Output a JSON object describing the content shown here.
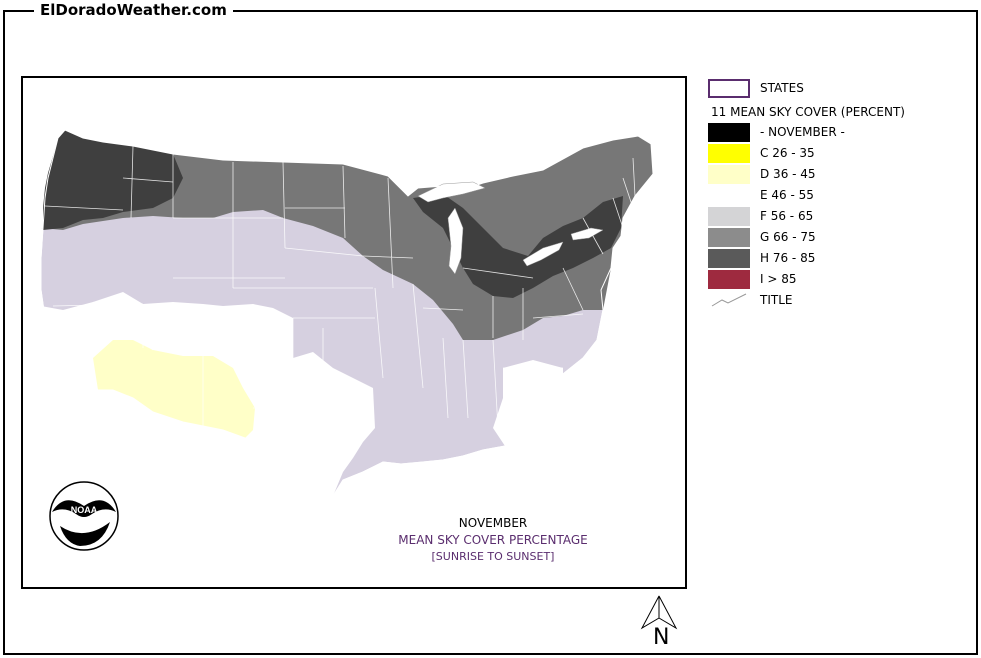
{
  "site": {
    "title": "ElDoradoWeather.com"
  },
  "legend": {
    "states_label": "STATES",
    "heading": "11 MEAN SKY COVER (PERCENT)",
    "items": [
      {
        "label": "- NOVEMBER -",
        "color": "#000000"
      },
      {
        "label": "C 26 - 35",
        "color": "#ffff00"
      },
      {
        "label": "D 36 - 45",
        "color": "#ffffc8"
      },
      {
        "label": "E 46 - 55",
        "color": "#ffffff"
      },
      {
        "label": "F 56 - 65",
        "color": "#d4d4d6"
      },
      {
        "label": "G 66 - 75",
        "color": "#8c8c8c"
      },
      {
        "label": "H 76 - 85",
        "color": "#5a5a5a"
      },
      {
        "label": "I > 85",
        "color": "#9e2a3f"
      }
    ],
    "title_label": "TITLE"
  },
  "map": {
    "month": "NOVEMBER",
    "subtitle": "MEAN SKY COVER PERCENTAGE",
    "note": "[SUNRISE TO SUNSET]",
    "logo_text": "NOAA",
    "colors": {
      "very_cloudy": "#3f3f3f",
      "cloudy": "#777777",
      "mostly_cloudy": "#d6d0e0",
      "partly": "#ffffff",
      "sunny": "#ffffc8"
    }
  },
  "compass": {
    "label": "N"
  }
}
